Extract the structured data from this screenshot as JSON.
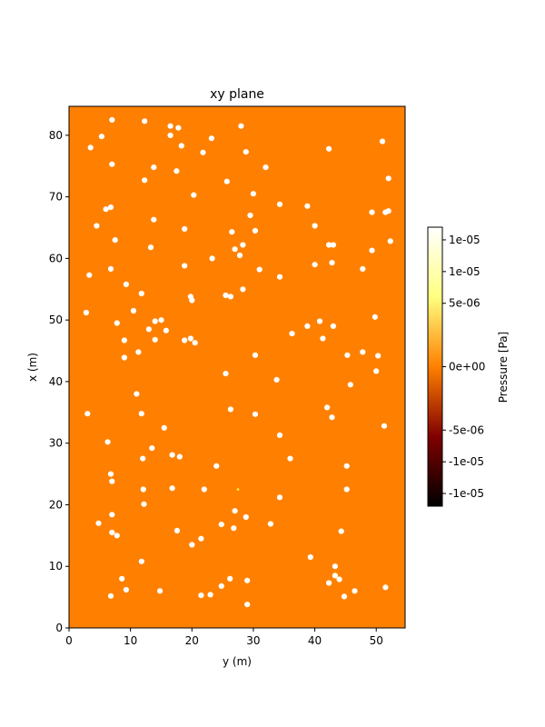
{
  "chart_data": {
    "type": "heatmap",
    "title": "xy plane",
    "xlabel": "y (m)",
    "ylabel": "x (m)",
    "xlim": [
      0,
      54.7
    ],
    "ylim": [
      0,
      84.7
    ],
    "x_ticks": [
      "0",
      "10",
      "20",
      "30",
      "40",
      "50"
    ],
    "y_ticks": [
      "0",
      "10",
      "20",
      "30",
      "40",
      "50",
      "60",
      "70",
      "80"
    ],
    "field_value": 0,
    "field_color": "#ff8000",
    "obstacle_color": "#ffffff",
    "colormap": "afmhot",
    "colorbar": {
      "label": "Pressure [Pa]",
      "range": [
        -1.1e-05,
        1.1e-05
      ],
      "ticks": [
        {
          "value": 1e-05,
          "label": "1e-05"
        },
        {
          "value": 7.5e-06,
          "label": "1e-05"
        },
        {
          "value": 5e-06,
          "label": "5e-06"
        },
        {
          "value": 0,
          "label": "0e+00"
        },
        {
          "value": -5e-06,
          "label": "-5e-06"
        },
        {
          "value": -7.5e-06,
          "label": "-1e-05"
        },
        {
          "value": -1e-05,
          "label": "-1e-05"
        }
      ]
    },
    "source_point": [
      27.5,
      22.5
    ],
    "obstacles": [
      [
        7.0,
        82.5
      ],
      [
        12.3,
        82.3
      ],
      [
        16.5,
        81.5
      ],
      [
        17.8,
        81.2
      ],
      [
        28.0,
        81.5
      ],
      [
        16.5,
        80.0
      ],
      [
        5.3,
        79.8
      ],
      [
        23.2,
        79.5
      ],
      [
        51.0,
        79.0
      ],
      [
        3.5,
        78.0
      ],
      [
        18.3,
        78.3
      ],
      [
        21.8,
        77.2
      ],
      [
        28.8,
        77.3
      ],
      [
        42.3,
        77.8
      ],
      [
        7.0,
        75.3
      ],
      [
        13.8,
        74.8
      ],
      [
        32.0,
        74.8
      ],
      [
        17.5,
        74.2
      ],
      [
        52.0,
        73.0
      ],
      [
        12.3,
        72.7
      ],
      [
        25.7,
        72.5
      ],
      [
        20.3,
        70.3
      ],
      [
        30.0,
        70.5
      ],
      [
        34.3,
        68.8
      ],
      [
        6.8,
        68.3
      ],
      [
        6.0,
        68.0
      ],
      [
        38.8,
        68.5
      ],
      [
        29.5,
        67.0
      ],
      [
        49.3,
        67.5
      ],
      [
        51.5,
        67.5
      ],
      [
        52.0,
        67.7
      ],
      [
        13.8,
        66.3
      ],
      [
        4.5,
        65.3
      ],
      [
        40.0,
        65.3
      ],
      [
        18.8,
        64.8
      ],
      [
        26.5,
        64.3
      ],
      [
        30.3,
        64.5
      ],
      [
        7.5,
        63.0
      ],
      [
        52.3,
        62.8
      ],
      [
        28.3,
        62.2
      ],
      [
        42.3,
        62.2
      ],
      [
        43.0,
        62.2
      ],
      [
        13.3,
        61.8
      ],
      [
        27.0,
        61.5
      ],
      [
        49.3,
        61.3
      ],
      [
        27.8,
        60.5
      ],
      [
        23.3,
        60.0
      ],
      [
        42.8,
        59.3
      ],
      [
        18.8,
        58.8
      ],
      [
        40.0,
        59.0
      ],
      [
        6.8,
        58.3
      ],
      [
        31.0,
        58.2
      ],
      [
        47.8,
        58.3
      ],
      [
        3.3,
        57.3
      ],
      [
        34.3,
        57.0
      ],
      [
        9.3,
        55.8
      ],
      [
        28.3,
        55.0
      ],
      [
        11.8,
        54.3
      ],
      [
        25.5,
        54.0
      ],
      [
        26.3,
        53.8
      ],
      [
        19.8,
        53.8
      ],
      [
        20.0,
        53.2
      ],
      [
        10.5,
        51.5
      ],
      [
        2.8,
        51.2
      ],
      [
        49.8,
        50.5
      ],
      [
        14.0,
        49.8
      ],
      [
        15.0,
        50.0
      ],
      [
        7.8,
        49.5
      ],
      [
        40.8,
        49.8
      ],
      [
        38.8,
        49.0
      ],
      [
        43.0,
        49.0
      ],
      [
        13.0,
        48.5
      ],
      [
        15.8,
        48.3
      ],
      [
        36.3,
        47.8
      ],
      [
        19.8,
        47.0
      ],
      [
        14.0,
        46.8
      ],
      [
        18.8,
        46.7
      ],
      [
        20.5,
        46.3
      ],
      [
        9.0,
        46.7
      ],
      [
        41.3,
        47.0
      ],
      [
        11.3,
        44.8
      ],
      [
        47.8,
        44.8
      ],
      [
        30.3,
        44.3
      ],
      [
        45.3,
        44.3
      ],
      [
        50.3,
        44.2
      ],
      [
        9.0,
        43.9
      ],
      [
        25.5,
        41.3
      ],
      [
        50.0,
        41.7
      ],
      [
        33.8,
        40.3
      ],
      [
        45.8,
        39.5
      ],
      [
        11.0,
        38.0
      ],
      [
        42.0,
        35.8
      ],
      [
        26.3,
        35.5
      ],
      [
        3.0,
        34.8
      ],
      [
        11.8,
        34.8
      ],
      [
        30.3,
        34.7
      ],
      [
        42.8,
        34.2
      ],
      [
        51.3,
        32.8
      ],
      [
        15.5,
        32.5
      ],
      [
        34.3,
        31.3
      ],
      [
        6.3,
        30.2
      ],
      [
        13.5,
        29.2
      ],
      [
        16.8,
        28.1
      ],
      [
        18.0,
        27.8
      ],
      [
        12.0,
        27.5
      ],
      [
        36.0,
        27.5
      ],
      [
        24.0,
        26.3
      ],
      [
        45.2,
        26.3
      ],
      [
        6.8,
        25.0
      ],
      [
        7.0,
        23.8
      ],
      [
        12.1,
        22.5
      ],
      [
        16.8,
        22.7
      ],
      [
        22.0,
        22.5
      ],
      [
        45.2,
        22.5
      ],
      [
        34.3,
        21.2
      ],
      [
        12.2,
        20.1
      ],
      [
        27.0,
        19.0
      ],
      [
        7.0,
        18.4
      ],
      [
        28.8,
        18.0
      ],
      [
        4.8,
        17.0
      ],
      [
        24.8,
        16.8
      ],
      [
        32.8,
        16.9
      ],
      [
        17.6,
        15.8
      ],
      [
        26.8,
        16.2
      ],
      [
        7.0,
        15.5
      ],
      [
        7.8,
        15.0
      ],
      [
        44.3,
        15.7
      ],
      [
        21.5,
        14.5
      ],
      [
        20.0,
        13.5
      ],
      [
        39.3,
        11.5
      ],
      [
        11.8,
        10.8
      ],
      [
        43.3,
        10.0
      ],
      [
        8.6,
        8.0
      ],
      [
        43.3,
        8.5
      ],
      [
        44.0,
        7.9
      ],
      [
        26.2,
        8.0
      ],
      [
        29.0,
        7.7
      ],
      [
        42.3,
        7.3
      ],
      [
        24.8,
        6.8
      ],
      [
        9.3,
        6.2
      ],
      [
        14.8,
        6.0
      ],
      [
        46.5,
        6.0
      ],
      [
        51.5,
        6.6
      ],
      [
        6.8,
        5.2
      ],
      [
        21.5,
        5.3
      ],
      [
        23.0,
        5.4
      ],
      [
        44.8,
        5.1
      ],
      [
        29.0,
        3.8
      ]
    ]
  }
}
